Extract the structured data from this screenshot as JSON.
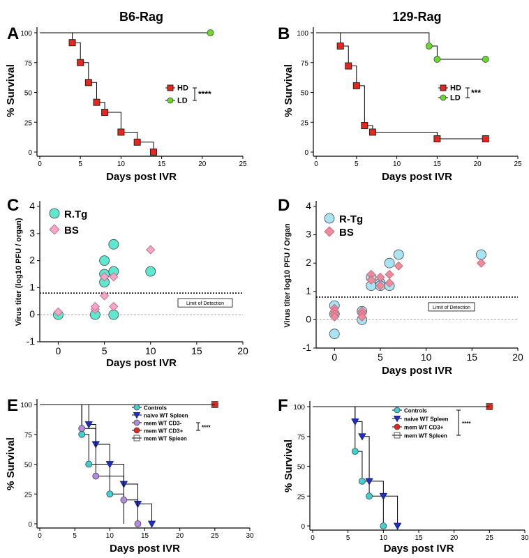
{
  "figure": {
    "panel_letters": [
      "A",
      "B",
      "C",
      "D",
      "E",
      "F"
    ]
  },
  "chart_data": [
    {
      "panel": "A",
      "type": "line",
      "subtype": "kaplan-meier",
      "title": "B6-Rag",
      "xlabel": "Days post IVR",
      "ylabel": "% Survival",
      "xlim": [
        0,
        25
      ],
      "ylim": [
        0,
        100
      ],
      "xticks": [
        0,
        5,
        10,
        15,
        20,
        25
      ],
      "xtick_labels": [
        "0",
        "5",
        "10",
        "15",
        "20",
        "25"
      ],
      "yticks": [
        0,
        25,
        50,
        75,
        100
      ],
      "ytick_labels": [
        "0",
        "25",
        "50",
        "75",
        "100"
      ],
      "legend": {
        "placement": "center-right",
        "significance": "****"
      },
      "series": [
        {
          "name": "HD",
          "color": "#e8261c",
          "marker": "square",
          "steps": [
            [
              0,
              100
            ],
            [
              4,
              91.7
            ],
            [
              5,
              75
            ],
            [
              6,
              58.3
            ],
            [
              7,
              41.7
            ],
            [
              8,
              33.3
            ],
            [
              10,
              16.7
            ],
            [
              12,
              8.3
            ],
            [
              14,
              0
            ]
          ],
          "markers": [
            [
              4,
              91.7
            ],
            [
              5,
              75
            ],
            [
              6,
              58.3
            ],
            [
              7,
              41.7
            ],
            [
              8,
              33.3
            ],
            [
              10,
              16.7
            ],
            [
              12,
              8.3
            ],
            [
              14,
              0
            ]
          ]
        },
        {
          "name": "LD",
          "color": "#66dd22",
          "marker": "circle",
          "steps": [
            [
              0,
              100
            ],
            [
              21,
              100
            ]
          ],
          "markers": [
            [
              21,
              100
            ]
          ]
        }
      ]
    },
    {
      "panel": "B",
      "type": "line",
      "subtype": "kaplan-meier",
      "title": "129-Rag",
      "xlabel": "Days post IVR",
      "ylabel": "% Survival",
      "xlim": [
        0,
        25
      ],
      "ylim": [
        0,
        100
      ],
      "xticks": [
        0,
        5,
        10,
        15,
        20,
        25
      ],
      "xtick_labels": [
        "0",
        "5",
        "10",
        "15",
        "20",
        "25"
      ],
      "yticks": [
        0,
        25,
        50,
        75,
        100
      ],
      "ytick_labels": [
        "0",
        "25",
        "50",
        "75",
        "100"
      ],
      "legend": {
        "placement": "center-right",
        "significance": "***"
      },
      "series": [
        {
          "name": "HD",
          "color": "#e8261c",
          "marker": "square",
          "steps": [
            [
              0,
              100
            ],
            [
              3,
              88.9
            ],
            [
              4,
              72.2
            ],
            [
              5,
              55.6
            ],
            [
              6,
              22.2
            ],
            [
              7,
              16.7
            ],
            [
              15,
              11.1
            ],
            [
              21,
              11.1
            ]
          ],
          "markers": [
            [
              3,
              88.9
            ],
            [
              4,
              72.2
            ],
            [
              5,
              55.6
            ],
            [
              6,
              22.2
            ],
            [
              7,
              16.7
            ],
            [
              15,
              11.1
            ],
            [
              21,
              11.1
            ]
          ]
        },
        {
          "name": "LD",
          "color": "#66dd22",
          "marker": "circle",
          "steps": [
            [
              0,
              100
            ],
            [
              14,
              88.9
            ],
            [
              15,
              77.8
            ],
            [
              21,
              77.8
            ]
          ],
          "markers": [
            [
              14,
              88.9
            ],
            [
              15,
              77.8
            ],
            [
              21,
              77.8
            ]
          ]
        }
      ]
    },
    {
      "panel": "C",
      "type": "scatter",
      "xlabel": "Days post IVR",
      "ylabel": "Virus titer (log10 PFU / organ)",
      "xlim": [
        -2,
        20
      ],
      "ylim": [
        -1,
        4
      ],
      "xticks": [
        0,
        5,
        10,
        15,
        20
      ],
      "xtick_labels": [
        "0",
        "5",
        "10",
        "15",
        "20"
      ],
      "yticks": [
        -1,
        0,
        1,
        2,
        3,
        4
      ],
      "ytick_labels": [
        "-1",
        "0",
        "1",
        "2",
        "3",
        "4"
      ],
      "limit_of_detection": {
        "y": 0.8,
        "label": "Limit of Detection"
      },
      "legend": {
        "placement": "top-left"
      },
      "series": [
        {
          "name": "R.Tg",
          "color": "#5ee8cf",
          "marker": "circle",
          "points": [
            [
              0,
              0
            ],
            [
              4,
              0
            ],
            [
              5,
              1.2
            ],
            [
              5,
              1.5
            ],
            [
              5,
              2.0
            ],
            [
              6,
              2.6
            ],
            [
              6,
              1.6
            ],
            [
              6,
              0
            ],
            [
              10,
              1.6
            ]
          ]
        },
        {
          "name": "BS",
          "color": "#f4a6c8",
          "marker": "diamond",
          "points": [
            [
              0,
              0.1
            ],
            [
              4,
              0.2
            ],
            [
              4,
              0.3
            ],
            [
              5,
              0.7
            ],
            [
              5,
              1.4
            ],
            [
              6,
              1.4
            ],
            [
              6,
              0.3
            ],
            [
              10,
              2.4
            ]
          ]
        }
      ]
    },
    {
      "panel": "D",
      "type": "scatter",
      "xlabel": "Days post IVR",
      "ylabel": "Virus titer log10 PFU / Organ",
      "xlim": [
        -2,
        20
      ],
      "ylim": [
        -1,
        4
      ],
      "xticks": [
        0,
        5,
        10,
        15,
        20
      ],
      "xtick_labels": [
        "0",
        "5",
        "10",
        "15",
        "20"
      ],
      "yticks": [
        -1,
        0,
        1,
        2,
        3,
        4
      ],
      "ytick_labels": [
        "-1",
        "0",
        "1",
        "2",
        "3",
        "4"
      ],
      "limit_of_detection": {
        "y": 0.8,
        "label": "Limit of Detection"
      },
      "legend": {
        "placement": "top-left"
      },
      "series": [
        {
          "name": "R-Tg",
          "color": "#a8e4f4",
          "marker": "circle",
          "points": [
            [
              0,
              0.5
            ],
            [
              0,
              0.2
            ],
            [
              0,
              -0.5
            ],
            [
              3,
              0.3
            ],
            [
              3,
              0
            ],
            [
              4,
              1.5
            ],
            [
              4,
              1.2
            ],
            [
              5,
              1.3
            ],
            [
              5,
              1.2
            ],
            [
              6,
              2.0
            ],
            [
              6,
              1.2
            ],
            [
              7,
              2.3
            ],
            [
              16,
              2.3
            ]
          ]
        },
        {
          "name": "BS",
          "color": "#ef8a9a",
          "marker": "diamond",
          "points": [
            [
              0,
              0.4
            ],
            [
              0,
              0.3
            ],
            [
              0,
              0.2
            ],
            [
              0,
              0.1
            ],
            [
              3,
              0.3
            ],
            [
              3,
              0.2
            ],
            [
              3,
              0.1
            ],
            [
              4,
              1.6
            ],
            [
              4,
              1.4
            ],
            [
              5,
              1.5
            ],
            [
              5,
              1.2
            ],
            [
              6,
              1.6
            ],
            [
              6,
              1.3
            ],
            [
              7,
              1.9
            ],
            [
              16,
              2.0
            ]
          ]
        }
      ]
    },
    {
      "panel": "E",
      "type": "line",
      "subtype": "kaplan-meier",
      "xlabel": "Days post IVR",
      "ylabel": "% Survival",
      "xlim": [
        0,
        30
      ],
      "ylim": [
        0,
        100
      ],
      "xticks": [
        0,
        5,
        10,
        15,
        20,
        25,
        30
      ],
      "xtick_labels": [
        "0",
        "5",
        "10",
        "15",
        "20",
        "25",
        "30"
      ],
      "yticks": [
        0,
        25,
        50,
        75,
        100
      ],
      "ytick_labels": [
        "0",
        "25",
        "50",
        "75",
        "100"
      ],
      "legend": {
        "placement": "center-right",
        "significance": "****"
      },
      "series": [
        {
          "name": "Controls",
          "color": "#3fd0d4",
          "marker": "circle",
          "steps": [
            [
              0,
              100
            ],
            [
              6,
              75
            ],
            [
              7,
              50
            ],
            [
              10,
              25
            ],
            [
              12,
              0
            ]
          ],
          "markers": [
            [
              6,
              75
            ],
            [
              7,
              50
            ],
            [
              10,
              25
            ]
          ]
        },
        {
          "name": "naive WT Spleen",
          "color": "#1f2fc8",
          "marker": "triangle-down",
          "steps": [
            [
              0,
              100
            ],
            [
              7,
              83.3
            ],
            [
              8,
              66.7
            ],
            [
              10,
              50
            ],
            [
              12,
              33.3
            ],
            [
              14,
              16.7
            ],
            [
              16,
              0
            ]
          ],
          "markers": [
            [
              7,
              83.3
            ],
            [
              8,
              66.7
            ],
            [
              10,
              50
            ],
            [
              12,
              33.3
            ],
            [
              14,
              16.7
            ],
            [
              16,
              0
            ]
          ]
        },
        {
          "name": "mem WT CD3-",
          "color": "#b48ae0",
          "marker": "circle",
          "steps": [
            [
              0,
              100
            ],
            [
              6,
              80
            ],
            [
              8,
              40
            ],
            [
              12,
              20
            ],
            [
              14,
              0
            ]
          ],
          "markers": [
            [
              6,
              80
            ],
            [
              8,
              40
            ],
            [
              12,
              20
            ],
            [
              14,
              0
            ]
          ]
        },
        {
          "name": "mem WT CD3+",
          "color": "#e8261c",
          "marker": "circle",
          "steps": [
            [
              0,
              100
            ],
            [
              25,
              100
            ]
          ],
          "markers": [
            [
              25,
              100
            ]
          ]
        },
        {
          "name": "mem WT Spleen",
          "color": "#ffffff",
          "marker": "square-open",
          "steps": [
            [
              0,
              100
            ],
            [
              25,
              100
            ]
          ],
          "markers": [
            [
              25,
              100
            ]
          ]
        }
      ]
    },
    {
      "panel": "F",
      "type": "line",
      "subtype": "kaplan-meier",
      "xlabel": "Days post IVR",
      "ylabel": "% Survival",
      "xlim": [
        0,
        30
      ],
      "ylim": [
        0,
        100
      ],
      "xticks": [
        0,
        5,
        10,
        15,
        20,
        25,
        30
      ],
      "xtick_labels": [
        "0",
        "5",
        "10",
        "15",
        "20",
        "25",
        "30"
      ],
      "yticks": [
        0,
        25,
        50,
        75,
        100
      ],
      "ytick_labels": [
        "0",
        "25",
        "50",
        "75",
        "100"
      ],
      "legend": {
        "placement": "top-center",
        "significance": "****"
      },
      "series": [
        {
          "name": "Controls",
          "color": "#3fd0d4",
          "marker": "circle",
          "steps": [
            [
              0,
              100
            ],
            [
              6,
              62.5
            ],
            [
              7,
              37.5
            ],
            [
              8,
              25
            ],
            [
              10,
              0
            ]
          ],
          "markers": [
            [
              6,
              62.5
            ],
            [
              7,
              37.5
            ],
            [
              8,
              25
            ],
            [
              10,
              0
            ]
          ]
        },
        {
          "name": "naive WT Spleen",
          "color": "#1f2fc8",
          "marker": "triangle-down",
          "steps": [
            [
              0,
              100
            ],
            [
              6,
              87.5
            ],
            [
              7,
              75
            ],
            [
              8,
              37.5
            ],
            [
              10,
              25
            ],
            [
              12,
              0
            ]
          ],
          "markers": [
            [
              6,
              87.5
            ],
            [
              7,
              75
            ],
            [
              8,
              37.5
            ],
            [
              10,
              25
            ],
            [
              12,
              0
            ]
          ]
        },
        {
          "name": "mem WT CD3+",
          "color": "#e8261c",
          "marker": "circle",
          "steps": [
            [
              0,
              100
            ],
            [
              25,
              100
            ]
          ],
          "markers": [
            [
              25,
              100
            ]
          ]
        },
        {
          "name": "mem WT Spleen",
          "color": "#ffffff",
          "marker": "square-open",
          "steps": [
            [
              0,
              100
            ],
            [
              25,
              100
            ]
          ],
          "markers": [
            [
              25,
              100
            ]
          ]
        }
      ]
    }
  ]
}
